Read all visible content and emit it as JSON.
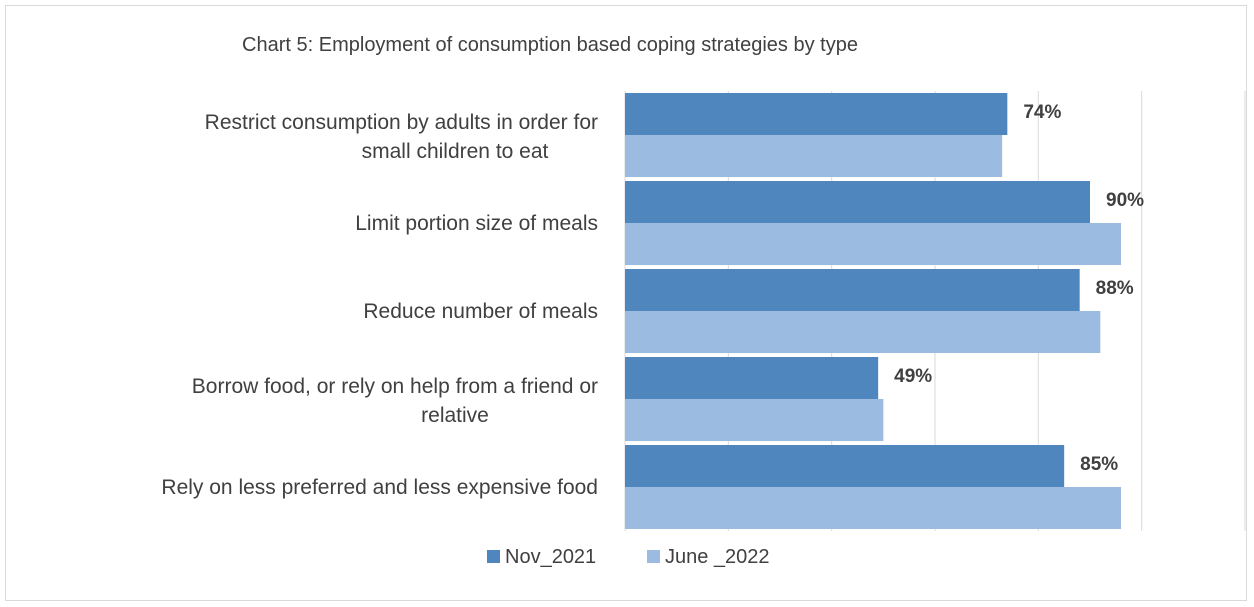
{
  "chart_data": {
    "type": "bar",
    "orientation": "horizontal",
    "title": "Chart 5: Employment of consumption based coping strategies by type",
    "categories": [
      "Restrict consumption by adults in order for small children to eat",
      "Limit portion size of meals",
      "Reduce number of meals",
      "Borrow food, or rely on help from a friend or relative",
      "Rely on less preferred and less expensive food"
    ],
    "series": [
      {
        "name": "Nov_2021",
        "values": [
          74,
          90,
          88,
          49,
          85
        ],
        "color": "#4f86bd"
      },
      {
        "name": "June _2022",
        "values": [
          73,
          96,
          92,
          50,
          96
        ],
        "color": "#9bbbe0"
      }
    ],
    "data_labels": [
      "74%",
      "90%",
      "88%",
      "49%",
      "85%"
    ],
    "xlim": [
      0,
      120
    ],
    "grid": true,
    "legend_position": "bottom"
  }
}
